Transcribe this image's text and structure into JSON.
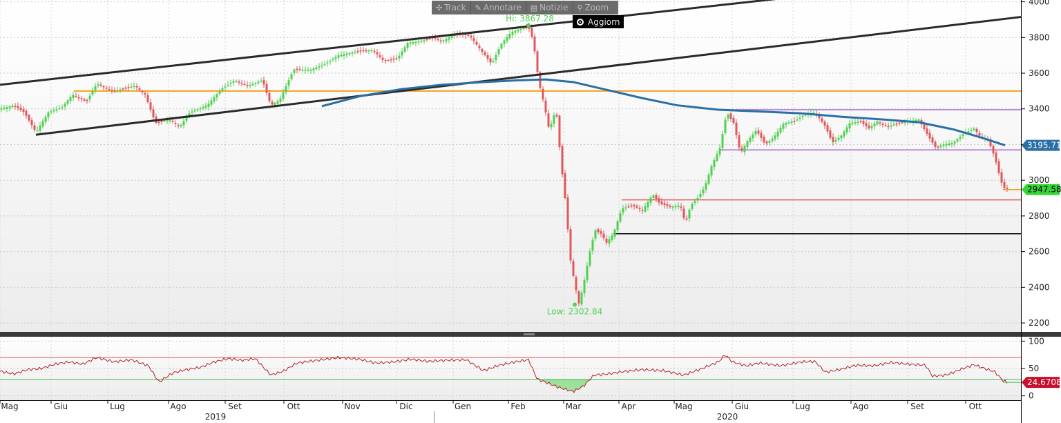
{
  "toolbar": {
    "track_label": "Track",
    "annotate_label": "Annotare",
    "news_label": "Notizie",
    "zoom_label": "Zoom",
    "refresh_label": "Aggiorn",
    "icons": [
      "move-icon",
      "pencil-icon",
      "news-icon",
      "magnifier-icon",
      "radio-icon"
    ]
  },
  "chart_data": [
    {
      "type": "candlestick",
      "ylim": [
        2150,
        4010
      ],
      "y_ticks": [
        "4000",
        "3800",
        "3600",
        "3400",
        "3200",
        "3000",
        "2800",
        "2600",
        "2400",
        "2200"
      ],
      "x_month_labels": [
        "Mag",
        "Giu",
        "Lug",
        "Ago",
        "Set",
        "Ott",
        "Nov",
        "Dic",
        "Gen",
        "Feb",
        "Mar",
        "Apr",
        "Mag",
        "Giu",
        "Lug",
        "Ago",
        "Set",
        "Ott"
      ],
      "x_year_labels": [
        "2019",
        "2020"
      ],
      "annotations": {
        "high_label": "Hi: 3867.28",
        "high_value": 3867.28,
        "low_label": "Low: 2302.84",
        "low_value": 2302.84,
        "last_price_label": "2947.58",
        "last_price": 2947.58,
        "ma_label": "3195.71",
        "ma_value": 3195.71
      },
      "price_points": [
        [
          0,
          3400
        ],
        [
          20,
          3420
        ],
        [
          35,
          3380
        ],
        [
          52,
          3270
        ],
        [
          70,
          3380
        ],
        [
          90,
          3410
        ],
        [
          105,
          3480
        ],
        [
          125,
          3440
        ],
        [
          140,
          3540
        ],
        [
          165,
          3500
        ],
        [
          195,
          3530
        ],
        [
          210,
          3480
        ],
        [
          225,
          3320
        ],
        [
          245,
          3340
        ],
        [
          260,
          3300
        ],
        [
          275,
          3380
        ],
        [
          300,
          3420
        ],
        [
          320,
          3510
        ],
        [
          340,
          3560
        ],
        [
          360,
          3530
        ],
        [
          380,
          3560
        ],
        [
          392,
          3420
        ],
        [
          405,
          3450
        ],
        [
          425,
          3620
        ],
        [
          450,
          3620
        ],
        [
          470,
          3650
        ],
        [
          490,
          3700
        ],
        [
          515,
          3720
        ],
        [
          540,
          3730
        ],
        [
          555,
          3670
        ],
        [
          575,
          3680
        ],
        [
          590,
          3770
        ],
        [
          610,
          3780
        ],
        [
          625,
          3800
        ],
        [
          640,
          3780
        ],
        [
          660,
          3820
        ],
        [
          680,
          3810
        ],
        [
          698,
          3720
        ],
        [
          712,
          3650
        ],
        [
          725,
          3760
        ],
        [
          740,
          3830
        ],
        [
          755,
          3850
        ],
        [
          765,
          3860
        ],
        [
          772,
          3780
        ],
        [
          780,
          3550
        ],
        [
          788,
          3420
        ],
        [
          795,
          3280
        ],
        [
          805,
          3400
        ],
        [
          812,
          3100
        ],
        [
          818,
          2900
        ],
        [
          826,
          2550
        ],
        [
          832,
          2420
        ],
        [
          838,
          2310
        ],
        [
          844,
          2400
        ],
        [
          850,
          2520
        ],
        [
          856,
          2640
        ],
        [
          862,
          2720
        ],
        [
          870,
          2700
        ],
        [
          878,
          2650
        ],
        [
          888,
          2700
        ],
        [
          900,
          2840
        ],
        [
          915,
          2860
        ],
        [
          930,
          2830
        ],
        [
          945,
          2920
        ],
        [
          955,
          2870
        ],
        [
          970,
          2850
        ],
        [
          985,
          2860
        ],
        [
          992,
          2760
        ],
        [
          1000,
          2860
        ],
        [
          1010,
          2900
        ],
        [
          1020,
          2960
        ],
        [
          1030,
          3080
        ],
        [
          1042,
          3180
        ],
        [
          1052,
          3380
        ],
        [
          1062,
          3320
        ],
        [
          1072,
          3150
        ],
        [
          1082,
          3220
        ],
        [
          1095,
          3280
        ],
        [
          1108,
          3200
        ],
        [
          1120,
          3240
        ],
        [
          1135,
          3320
        ],
        [
          1150,
          3330
        ],
        [
          1165,
          3370
        ],
        [
          1180,
          3380
        ],
        [
          1195,
          3300
        ],
        [
          1205,
          3210
        ],
        [
          1218,
          3250
        ],
        [
          1230,
          3320
        ],
        [
          1245,
          3330
        ],
        [
          1258,
          3290
        ],
        [
          1270,
          3330
        ],
        [
          1285,
          3300
        ],
        [
          1300,
          3320
        ],
        [
          1315,
          3330
        ],
        [
          1330,
          3340
        ],
        [
          1345,
          3240
        ],
        [
          1355,
          3180
        ],
        [
          1365,
          3200
        ],
        [
          1380,
          3210
        ],
        [
          1395,
          3260
        ],
        [
          1410,
          3290
        ],
        [
          1420,
          3240
        ],
        [
          1430,
          3230
        ],
        [
          1440,
          3130
        ],
        [
          1446,
          3040
        ],
        [
          1452,
          2960
        ],
        [
          1458,
          2948
        ]
      ],
      "moving_average_points": [
        [
          466,
          3415
        ],
        [
          520,
          3470
        ],
        [
          580,
          3510
        ],
        [
          640,
          3535
        ],
        [
          700,
          3550
        ],
        [
          750,
          3560
        ],
        [
          790,
          3565
        ],
        [
          830,
          3550
        ],
        [
          880,
          3505
        ],
        [
          930,
          3460
        ],
        [
          980,
          3420
        ],
        [
          1040,
          3395
        ],
        [
          1100,
          3385
        ],
        [
          1160,
          3375
        ],
        [
          1220,
          3355
        ],
        [
          1280,
          3340
        ],
        [
          1330,
          3325
        ],
        [
          1380,
          3285
        ],
        [
          1420,
          3240
        ],
        [
          1455,
          3195.71
        ]
      ]
    },
    {
      "type": "line",
      "name": "RSI",
      "ylim": [
        -8,
        108
      ],
      "y_ticks": [
        "100",
        "50",
        "0"
      ],
      "last_value_label": "24.6708",
      "last_value": 24.6708,
      "upper_band": 70,
      "lower_band": 30,
      "points": [
        [
          0,
          45
        ],
        [
          20,
          40
        ],
        [
          40,
          48
        ],
        [
          60,
          50
        ],
        [
          80,
          58
        ],
        [
          100,
          62
        ],
        [
          120,
          58
        ],
        [
          140,
          70
        ],
        [
          165,
          62
        ],
        [
          190,
          66
        ],
        [
          215,
          55
        ],
        [
          230,
          25
        ],
        [
          250,
          42
        ],
        [
          270,
          48
        ],
        [
          290,
          52
        ],
        [
          310,
          62
        ],
        [
          330,
          68
        ],
        [
          350,
          65
        ],
        [
          370,
          68
        ],
        [
          392,
          38
        ],
        [
          410,
          45
        ],
        [
          430,
          60
        ],
        [
          460,
          65
        ],
        [
          490,
          70
        ],
        [
          520,
          67
        ],
        [
          545,
          60
        ],
        [
          570,
          62
        ],
        [
          595,
          67
        ],
        [
          620,
          63
        ],
        [
          645,
          65
        ],
        [
          675,
          66
        ],
        [
          700,
          46
        ],
        [
          720,
          55
        ],
        [
          745,
          62
        ],
        [
          765,
          66
        ],
        [
          778,
          30
        ],
        [
          790,
          25
        ],
        [
          810,
          15
        ],
        [
          830,
          8
        ],
        [
          845,
          18
        ],
        [
          860,
          38
        ],
        [
          880,
          40
        ],
        [
          900,
          44
        ],
        [
          930,
          48
        ],
        [
          960,
          46
        ],
        [
          990,
          38
        ],
        [
          1010,
          47
        ],
        [
          1040,
          62
        ],
        [
          1050,
          75
        ],
        [
          1060,
          62
        ],
        [
          1080,
          55
        ],
        [
          1100,
          60
        ],
        [
          1130,
          55
        ],
        [
          1160,
          62
        ],
        [
          1180,
          63
        ],
        [
          1195,
          43
        ],
        [
          1215,
          48
        ],
        [
          1240,
          56
        ],
        [
          1265,
          55
        ],
        [
          1290,
          61
        ],
        [
          1315,
          58
        ],
        [
          1340,
          56
        ],
        [
          1350,
          36
        ],
        [
          1370,
          38
        ],
        [
          1390,
          48
        ],
        [
          1410,
          57
        ],
        [
          1425,
          50
        ],
        [
          1440,
          44
        ],
        [
          1452,
          28
        ],
        [
          1458,
          24.6708
        ]
      ]
    }
  ],
  "colors": {
    "up": "#4fd14f",
    "down": "#e0585c",
    "moving_average": "#2a6fa6",
    "channel": "#2a2a2a",
    "orange_line": "#f6a01a",
    "purple_line": "#a66ad3",
    "support_red": "#e06060",
    "support_black": "#000000",
    "rsi_line": "#b0222a",
    "rsi_upper": "#e05555",
    "rsi_lower": "#3eb84a",
    "rsi_fill": "#9be09b"
  }
}
